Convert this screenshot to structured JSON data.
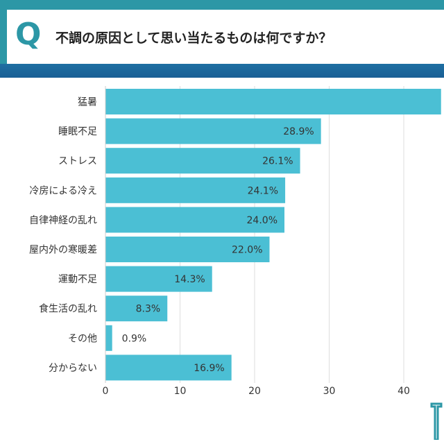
{
  "header": {
    "q_mark": "Q",
    "question": "不調の原因として思い当たるものは何ですか？"
  },
  "colors": {
    "bar": "#4bbfd4",
    "accent": "#2c97a6",
    "header_bottom": "#1e6fa2"
  },
  "chart_data": {
    "type": "bar",
    "orientation": "horizontal",
    "categories": [
      "猛暑",
      "睡眠不足",
      "ストレス",
      "冷房による冷え",
      "自律神経の乱れ",
      "屋内外の寒暖差",
      "運動不足",
      "食生活の乱れ",
      "その他",
      "分からない"
    ],
    "values": [
      45.0,
      28.9,
      26.1,
      24.1,
      24.0,
      22.0,
      14.3,
      8.3,
      0.9,
      16.9
    ],
    "value_labels": [
      "",
      "28.9%",
      "26.1%",
      "24.1%",
      "24.0%",
      "22.0%",
      "14.3%",
      "8.3%",
      "0.9%",
      "16.9%"
    ],
    "xticks": [
      "0",
      "10",
      "20",
      "30",
      "40"
    ],
    "xlim": [
      0,
      45.6
    ],
    "grid": true,
    "legend": "none"
  }
}
